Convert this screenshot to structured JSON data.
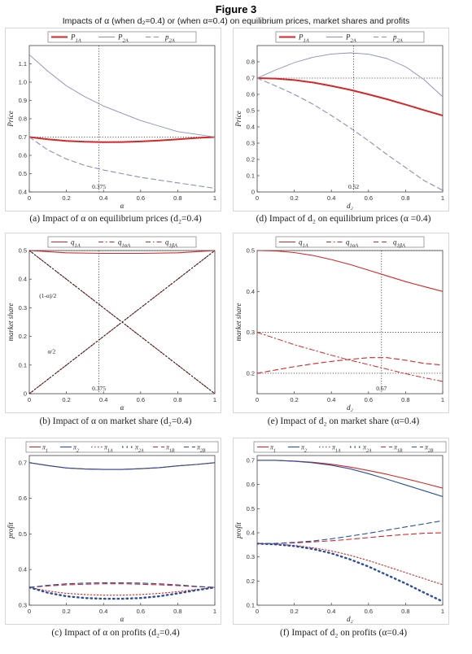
{
  "figure": {
    "title": "Figure 3",
    "subtitle": "Impacts of α (when d₂=0.4) or (when α=0.4) on equilibrium prices, market shares and profits"
  },
  "chart_data": [
    {
      "id": "a",
      "type": "line",
      "caption": "(a) Impact of α on equilibrium prices (d₂=0.4)",
      "xlabel": "α",
      "ylabel": "Price",
      "xlim": [
        0,
        1
      ],
      "ylim": [
        0.4,
        1.2
      ],
      "xticks": [
        0,
        0.2,
        0.4,
        0.6,
        0.8,
        1
      ],
      "yticks": [
        0.4,
        0.5,
        0.6,
        0.7,
        0.8,
        0.9,
        1.0,
        1.1
      ],
      "ytick_labels": [
        "0.4",
        "0.5",
        "0.6",
        "0.7",
        "0.8",
        "0.9",
        "1.0",
        "1.1"
      ],
      "legend_position": "top",
      "x": [
        0,
        0.1,
        0.2,
        0.3,
        0.4,
        0.5,
        0.6,
        0.7,
        0.8,
        0.9,
        1.0
      ],
      "series": [
        {
          "name": "P1A",
          "style": "solid-thick",
          "color": "#d62728",
          "values": [
            0.7,
            0.688,
            0.679,
            0.674,
            0.672,
            0.673,
            0.676,
            0.681,
            0.688,
            0.695,
            0.7
          ]
        },
        {
          "name": "P2A",
          "style": "solid-thin",
          "color": "#8a8fb8",
          "values": [
            1.15,
            1.06,
            0.98,
            0.92,
            0.87,
            0.83,
            0.79,
            0.76,
            0.73,
            0.715,
            0.7
          ]
        },
        {
          "name": "p2A",
          "style": "dashed",
          "color": "#8a8fb8",
          "values": [
            0.7,
            0.63,
            0.58,
            0.545,
            0.52,
            0.5,
            0.48,
            0.465,
            0.45,
            0.435,
            0.42
          ]
        }
      ],
      "annotations": [
        {
          "text": "0.375",
          "x": 0.375
        }
      ],
      "ref_lines": {
        "h": [
          0.7
        ],
        "v": [
          0.375
        ]
      }
    },
    {
      "id": "d",
      "type": "line",
      "caption": "(d) Impact of d₂ on equilibrium prices (α =0.4)",
      "xlabel": "d₂",
      "ylabel": "Price",
      "xlim": [
        0,
        1
      ],
      "ylim": [
        0,
        0.9
      ],
      "xticks": [
        0,
        0.2,
        0.4,
        0.6,
        0.8,
        1
      ],
      "yticks": [
        0,
        0.1,
        0.2,
        0.3,
        0.4,
        0.5,
        0.6,
        0.7,
        0.8
      ],
      "ytick_labels": [
        "0",
        "0.1",
        "0.2",
        "0.3",
        "0.4",
        "0.5",
        "0.6",
        "0.7",
        "0.8"
      ],
      "legend_position": "top",
      "x": [
        0,
        0.1,
        0.2,
        0.3,
        0.4,
        0.5,
        0.6,
        0.7,
        0.8,
        0.9,
        1.0
      ],
      "series": [
        {
          "name": "P1A",
          "style": "solid-thick",
          "color": "#d62728",
          "values": [
            0.7,
            0.697,
            0.688,
            0.673,
            0.652,
            0.628,
            0.6,
            0.57,
            0.537,
            0.503,
            0.47
          ]
        },
        {
          "name": "P2A",
          "style": "solid-thin",
          "color": "#8a8fb8",
          "values": [
            0.7,
            0.75,
            0.795,
            0.828,
            0.848,
            0.855,
            0.847,
            0.82,
            0.77,
            0.69,
            0.585
          ]
        },
        {
          "name": "p2A",
          "style": "dashed",
          "color": "#8a8fb8",
          "values": [
            0.7,
            0.652,
            0.6,
            0.54,
            0.47,
            0.395,
            0.315,
            0.23,
            0.15,
            0.07,
            0.01
          ]
        }
      ],
      "annotations": [
        {
          "text": "0.52",
          "x": 0.52
        }
      ],
      "ref_lines": {
        "h": [
          0.7
        ],
        "v": [
          0.52
        ]
      }
    },
    {
      "id": "b",
      "type": "line",
      "caption": "(b) Impact of α on market share (d₂=0.4)",
      "xlabel": "α",
      "ylabel": "market share",
      "xlim": [
        0,
        1
      ],
      "ylim": [
        0,
        0.5
      ],
      "xticks": [
        0,
        0.2,
        0.4,
        0.6,
        0.8,
        1
      ],
      "yticks": [
        0,
        0.1,
        0.2,
        0.3,
        0.4,
        0.5
      ],
      "ytick_labels": [
        "0",
        "0.1",
        "0.2",
        "0.3",
        "0.4",
        "0.5"
      ],
      "legend_position": "top",
      "x": [
        0,
        0.2,
        0.4,
        0.6,
        0.8,
        1.0
      ],
      "series": [
        {
          "name": "q1A",
          "style": "solid",
          "color": "#d62728",
          "values": [
            0.5,
            0.492,
            0.49,
            0.49,
            0.492,
            0.5
          ]
        },
        {
          "name": "q1αA",
          "style": "dashdot",
          "color": "#d62728",
          "values": [
            0.5,
            0.4,
            0.3,
            0.2,
            0.1,
            0.0
          ]
        },
        {
          "name": "q1βA",
          "style": "dashdot",
          "color": "#d62728",
          "values": [
            0.0,
            0.1,
            0.2,
            0.3,
            0.4,
            0.5
          ]
        },
        {
          "name": "(1-α)/2",
          "style": "dotted",
          "color": "#222222",
          "values": [
            0.5,
            0.4,
            0.3,
            0.2,
            0.1,
            0.0
          ]
        },
        {
          "name": "α/2",
          "style": "dotted",
          "color": "#222222",
          "values": [
            0.0,
            0.1,
            0.2,
            0.3,
            0.4,
            0.5
          ]
        }
      ],
      "annotations": [
        {
          "text": "(1-α)/2",
          "x": 0.1,
          "y": 0.335
        },
        {
          "text": "α/2",
          "x": 0.12,
          "y": 0.14
        },
        {
          "text": "0.375",
          "x": 0.375
        }
      ],
      "ref_lines": {
        "h": [
          0.5
        ],
        "v": [
          0.375
        ]
      }
    },
    {
      "id": "e",
      "type": "line",
      "caption": "(e) Impact of d₂ on market share (α=0.4)",
      "xlabel": "d₂",
      "ylabel": "market share",
      "xlim": [
        0,
        1
      ],
      "ylim": [
        0.15,
        0.5
      ],
      "xticks": [
        0,
        0.2,
        0.4,
        0.6,
        0.8,
        1
      ],
      "yticks": [
        0.2,
        0.3,
        0.4,
        0.5
      ],
      "ytick_labels": [
        "0.2",
        "0.3",
        "0.4",
        "0.5"
      ],
      "legend_position": "top",
      "x": [
        0,
        0.1,
        0.2,
        0.3,
        0.4,
        0.5,
        0.6,
        0.7,
        0.8,
        0.9,
        1.0
      ],
      "series": [
        {
          "name": "q1A",
          "style": "solid",
          "color": "#d62728",
          "values": [
            0.5,
            0.499,
            0.495,
            0.488,
            0.478,
            0.466,
            0.452,
            0.438,
            0.424,
            0.412,
            0.4
          ]
        },
        {
          "name": "q1αA",
          "style": "dashdot",
          "color": "#d62728",
          "values": [
            0.3,
            0.285,
            0.27,
            0.257,
            0.244,
            0.232,
            0.221,
            0.21,
            0.199,
            0.189,
            0.18
          ]
        },
        {
          "name": "q1βA",
          "style": "dashed",
          "color": "#d62728",
          "values": [
            0.2,
            0.208,
            0.216,
            0.223,
            0.229,
            0.234,
            0.238,
            0.238,
            0.232,
            0.224,
            0.22
          ]
        }
      ],
      "annotations": [
        {
          "text": "0.67",
          "x": 0.67
        }
      ],
      "ref_lines": {
        "h": [
          0.5,
          0.3,
          0.2
        ],
        "v": [
          0.67
        ]
      }
    },
    {
      "id": "c",
      "type": "line",
      "caption": "(c) Impact of α on profits (d₂=0.4)",
      "xlabel": "α",
      "ylabel": "profit",
      "xlim": [
        0,
        1
      ],
      "ylim": [
        0.3,
        0.72
      ],
      "xticks": [
        0,
        0.2,
        0.4,
        0.6,
        0.8,
        1
      ],
      "yticks": [
        0.3,
        0.4,
        0.5,
        0.6,
        0.7
      ],
      "ytick_labels": [
        "0.3",
        "0.4",
        "0.5",
        "0.6",
        "0.7"
      ],
      "legend_position": "top",
      "x": [
        0,
        0.1,
        0.2,
        0.3,
        0.4,
        0.5,
        0.6,
        0.7,
        0.8,
        0.9,
        1.0
      ],
      "series": [
        {
          "name": "π1",
          "style": "solid",
          "color": "#d62728",
          "values": [
            0.7,
            0.692,
            0.685,
            0.682,
            0.681,
            0.681,
            0.683,
            0.686,
            0.691,
            0.695,
            0.7
          ]
        },
        {
          "name": "π2",
          "style": "solid",
          "color": "#2b4f9e",
          "values": [
            0.7,
            0.692,
            0.685,
            0.682,
            0.681,
            0.681,
            0.683,
            0.686,
            0.691,
            0.695,
            0.7
          ]
        },
        {
          "name": "π1A",
          "style": "dotted",
          "color": "#d62728",
          "values": [
            0.35,
            0.34,
            0.333,
            0.33,
            0.328,
            0.328,
            0.33,
            0.333,
            0.338,
            0.344,
            0.35
          ]
        },
        {
          "name": "π2A",
          "style": "dotted-heavy",
          "color": "#2b4f9e",
          "values": [
            0.35,
            0.335,
            0.325,
            0.32,
            0.318,
            0.318,
            0.32,
            0.325,
            0.333,
            0.342,
            0.35
          ]
        },
        {
          "name": "π1B",
          "style": "dashed",
          "color": "#d62728",
          "values": [
            0.35,
            0.354,
            0.357,
            0.359,
            0.36,
            0.36,
            0.359,
            0.357,
            0.355,
            0.352,
            0.35
          ]
        },
        {
          "name": "π2B",
          "style": "dashed",
          "color": "#2b4f9e",
          "values": [
            0.35,
            0.356,
            0.36,
            0.362,
            0.363,
            0.363,
            0.362,
            0.36,
            0.357,
            0.353,
            0.35
          ]
        }
      ],
      "annotations": [],
      "ref_lines": {
        "h": [],
        "v": []
      }
    },
    {
      "id": "f",
      "type": "line",
      "caption": "(f) Impact of d₂ on profits (α=0.4)",
      "xlabel": "d₂",
      "ylabel": "profit",
      "xlim": [
        0,
        1
      ],
      "ylim": [
        0.1,
        0.72
      ],
      "xticks": [
        0,
        0.2,
        0.4,
        0.6,
        0.8,
        1
      ],
      "yticks": [
        0.1,
        0.2,
        0.3,
        0.4,
        0.5,
        0.6,
        0.7
      ],
      "ytick_labels": [
        "0.1",
        "0.2",
        "0.3",
        "0.4",
        "0.5",
        "0.6",
        "0.7"
      ],
      "legend_position": "top",
      "x": [
        0,
        0.1,
        0.2,
        0.3,
        0.4,
        0.5,
        0.6,
        0.7,
        0.8,
        0.9,
        1.0
      ],
      "series": [
        {
          "name": "π1",
          "style": "solid",
          "color": "#d62728",
          "values": [
            0.7,
            0.7,
            0.697,
            0.692,
            0.684,
            0.672,
            0.658,
            0.642,
            0.624,
            0.605,
            0.585
          ]
        },
        {
          "name": "π2",
          "style": "solid",
          "color": "#2b4f9e",
          "values": [
            0.7,
            0.7,
            0.696,
            0.69,
            0.68,
            0.665,
            0.645,
            0.622,
            0.598,
            0.574,
            0.55
          ]
        },
        {
          "name": "π1A",
          "style": "dotted",
          "color": "#d62728",
          "values": [
            0.355,
            0.353,
            0.348,
            0.338,
            0.325,
            0.307,
            0.285,
            0.26,
            0.235,
            0.21,
            0.185
          ]
        },
        {
          "name": "π2A",
          "style": "dotted-heavy",
          "color": "#2b4f9e",
          "values": [
            0.355,
            0.352,
            0.345,
            0.333,
            0.315,
            0.29,
            0.26,
            0.225,
            0.19,
            0.152,
            0.115
          ]
        },
        {
          "name": "π1B",
          "style": "dashed",
          "color": "#d62728",
          "values": [
            0.355,
            0.356,
            0.358,
            0.362,
            0.367,
            0.373,
            0.38,
            0.387,
            0.393,
            0.398,
            0.4
          ]
        },
        {
          "name": "π2B",
          "style": "dashed",
          "color": "#2b4f9e",
          "values": [
            0.355,
            0.356,
            0.36,
            0.366,
            0.375,
            0.386,
            0.398,
            0.411,
            0.424,
            0.437,
            0.45
          ]
        }
      ],
      "annotations": [],
      "ref_lines": {
        "h": [],
        "v": []
      }
    }
  ]
}
